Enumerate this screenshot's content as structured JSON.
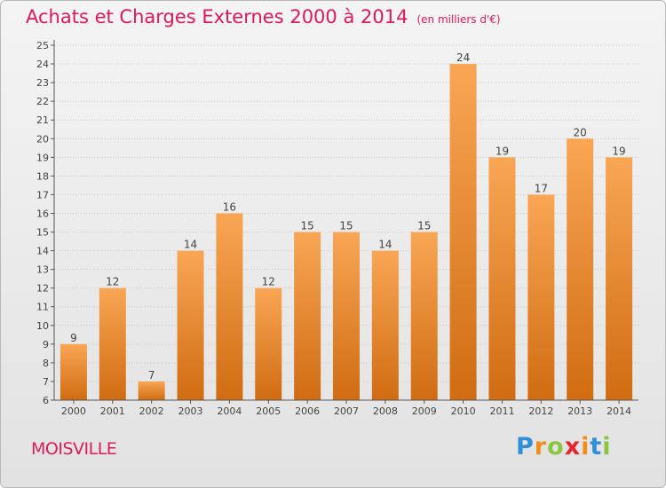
{
  "header": {
    "title": "Achats et Charges Externes 2000 à 2014",
    "unit": "(en milliers d'€)"
  },
  "footer": {
    "commune": "MOISVILLE"
  },
  "brand": {
    "letters": [
      "P",
      "r",
      "o",
      "x",
      "i",
      "t",
      "i"
    ],
    "colors": [
      "#2f8fd8",
      "#f28c1a",
      "#8cc63f",
      "#e8232a",
      "#f28c1a",
      "#2f8fd8",
      "#8cc63f"
    ]
  },
  "colors": {
    "bar_top": "#f9a655",
    "bar_bottom": "#d06c12",
    "grid": "#c9c9c9",
    "axis": "#555555"
  },
  "chart_data": {
    "type": "bar",
    "title": "Achats et Charges Externes 2000 à 2014",
    "subtitle": "(en milliers d'€)",
    "categories": [
      "2000",
      "2001",
      "2002",
      "2003",
      "2004",
      "2005",
      "2006",
      "2007",
      "2008",
      "2009",
      "2010",
      "2011",
      "2012",
      "2013",
      "2014"
    ],
    "values": [
      9,
      12,
      7,
      14,
      16,
      12,
      15,
      15,
      14,
      15,
      24,
      19,
      17,
      20,
      19
    ],
    "ylim": [
      6,
      25
    ],
    "yticks": [
      6,
      7,
      8,
      9,
      10,
      11,
      12,
      13,
      14,
      15,
      16,
      17,
      18,
      19,
      20,
      21,
      22,
      23,
      24,
      25
    ],
    "grid": true,
    "legend": false
  }
}
